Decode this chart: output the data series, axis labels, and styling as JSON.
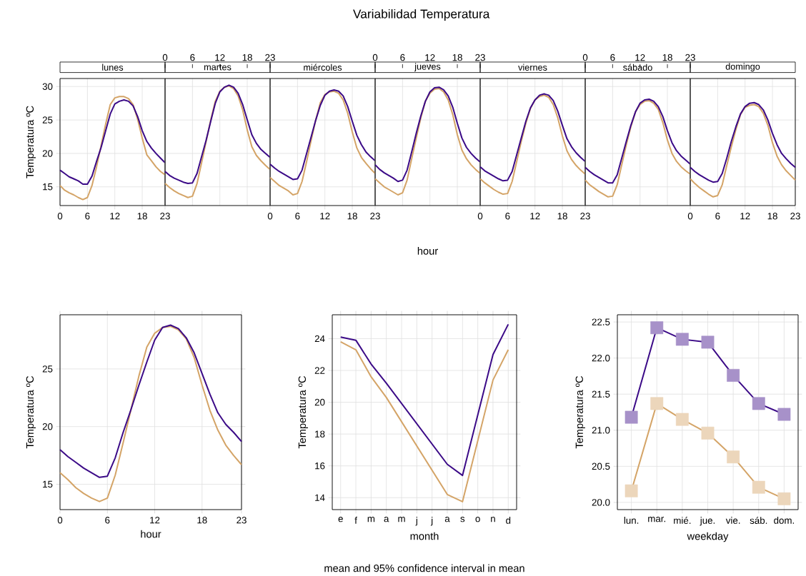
{
  "chart_data": [
    {
      "type": "line",
      "title": "lunes",
      "ylabel": "Temperatura ºC",
      "annotations": [
        "Variabilidad Temperatura"
      ],
      "x": [
        0,
        1,
        2,
        3,
        4,
        5,
        6,
        7,
        8,
        9,
        10,
        11,
        12,
        13,
        14,
        15,
        16,
        17,
        18,
        19,
        20,
        21,
        22,
        23
      ],
      "xlim": [
        0,
        23
      ],
      "xticks": [
        0,
        6,
        12,
        18,
        23
      ],
      "ylim": [
        12.2,
        31.2
      ],
      "yticks": [
        15,
        20,
        25,
        30
      ],
      "grid": true,
      "series": [
        {
          "color": "#d4a467",
          "values": [
            15.2,
            14.5,
            14.1,
            13.8,
            13.4,
            13.1,
            13.4,
            15.2,
            18.0,
            21.2,
            24.4,
            27.3,
            28.3,
            28.5,
            28.5,
            28.2,
            27.3,
            25.1,
            22.3,
            19.8,
            18.9,
            18.0,
            17.3,
            16.8
          ]
        },
        {
          "color": "#3b0a87",
          "values": [
            17.5,
            17.0,
            16.5,
            16.2,
            15.9,
            15.4,
            15.4,
            16.6,
            18.8,
            20.9,
            23.4,
            25.9,
            27.4,
            27.8,
            28.0,
            27.8,
            27.1,
            25.5,
            23.4,
            21.8,
            20.8,
            20.0,
            19.3,
            18.6
          ]
        }
      ]
    },
    {
      "type": "line",
      "title": "martes",
      "x": [
        0,
        1,
        2,
        3,
        4,
        5,
        6,
        7,
        8,
        9,
        10,
        11,
        12,
        13,
        14,
        15,
        16,
        17,
        18,
        19,
        20,
        21,
        22,
        23
      ],
      "xlim": [
        0,
        23
      ],
      "x2lim": [
        0,
        23
      ],
      "x2ticks": [
        0,
        6,
        12,
        18,
        23
      ],
      "ylim": [
        12.2,
        31.2
      ],
      "yticks": [
        15,
        20,
        25,
        30
      ],
      "grid": true,
      "tick_labels": "x",
      "series": [
        {
          "color": "#d4a467",
          "values": [
            15.5,
            14.9,
            14.4,
            14.0,
            13.7,
            13.4,
            13.6,
            15.5,
            18.6,
            21.8,
            25.0,
            27.8,
            29.3,
            29.9,
            30.1,
            29.7,
            28.6,
            26.5,
            23.5,
            21.0,
            19.7,
            18.9,
            18.2,
            17.6
          ]
        },
        {
          "color": "#3b0a87",
          "values": [
            17.3,
            16.7,
            16.3,
            16.0,
            15.7,
            15.5,
            15.6,
            17.0,
            19.5,
            22.0,
            24.8,
            27.5,
            29.2,
            29.9,
            30.2,
            29.9,
            29.0,
            27.3,
            25.0,
            22.8,
            21.5,
            20.6,
            20.0,
            19.4
          ]
        }
      ]
    },
    {
      "type": "line",
      "title": "miércoles",
      "x": [
        0,
        1,
        2,
        3,
        4,
        5,
        6,
        7,
        8,
        9,
        10,
        11,
        12,
        13,
        14,
        15,
        16,
        17,
        18,
        19,
        20,
        21,
        22,
        23
      ],
      "xlim": [
        0,
        23
      ],
      "xticks": [
        0,
        6,
        12,
        18,
        23
      ],
      "ylim": [
        12.2,
        31.2
      ],
      "yticks": [
        15,
        20,
        25,
        30
      ],
      "grid": true,
      "tick_labels": "x",
      "series": [
        {
          "color": "#d4a467",
          "values": [
            16.4,
            15.8,
            15.2,
            14.8,
            14.4,
            13.8,
            14.0,
            15.8,
            18.8,
            22.0,
            25.0,
            27.6,
            28.8,
            29.2,
            29.3,
            29.0,
            28.0,
            26.0,
            23.2,
            20.8,
            19.4,
            18.5,
            17.7,
            17.0
          ]
        },
        {
          "color": "#3b0a87",
          "values": [
            18.4,
            17.8,
            17.3,
            16.9,
            16.5,
            16.1,
            16.2,
            17.5,
            20.0,
            22.5,
            25.0,
            27.2,
            28.7,
            29.3,
            29.5,
            29.3,
            28.6,
            27.0,
            24.8,
            22.7,
            21.3,
            20.2,
            19.5,
            18.9
          ]
        }
      ]
    },
    {
      "type": "line",
      "title": "jueves",
      "xlabel": "hour",
      "x": [
        0,
        1,
        2,
        3,
        4,
        5,
        6,
        7,
        8,
        9,
        10,
        11,
        12,
        13,
        14,
        15,
        16,
        17,
        18,
        19,
        20,
        21,
        22,
        23
      ],
      "xlim": [
        0,
        23
      ],
      "x2lim": [
        0,
        23
      ],
      "x2ticks": [
        0,
        6,
        12,
        18,
        23
      ],
      "ylim": [
        12.2,
        31.2
      ],
      "yticks": [
        15,
        20,
        25,
        30
      ],
      "grid": true,
      "tick_labels": "x",
      "series": [
        {
          "color": "#d4a467",
          "values": [
            16.2,
            15.6,
            15.0,
            14.6,
            14.2,
            13.8,
            14.1,
            16.0,
            19.2,
            22.3,
            25.3,
            27.8,
            29.0,
            29.6,
            29.7,
            29.2,
            28.0,
            25.8,
            22.8,
            20.5,
            19.2,
            18.3,
            17.6,
            17.0
          ]
        },
        {
          "color": "#3b0a87",
          "values": [
            18.3,
            17.6,
            17.1,
            16.7,
            16.3,
            15.8,
            16.0,
            17.5,
            20.2,
            23.0,
            25.6,
            27.8,
            29.2,
            29.8,
            29.9,
            29.5,
            28.6,
            26.9,
            24.5,
            22.3,
            20.9,
            20.0,
            19.3,
            18.7
          ]
        }
      ]
    },
    {
      "type": "line",
      "title": "viernes",
      "x": [
        0,
        1,
        2,
        3,
        4,
        5,
        6,
        7,
        8,
        9,
        10,
        11,
        12,
        13,
        14,
        15,
        16,
        17,
        18,
        19,
        20,
        21,
        22,
        23
      ],
      "xlim": [
        0,
        23
      ],
      "xticks": [
        0,
        6,
        12,
        18,
        23
      ],
      "ylim": [
        12.2,
        31.2
      ],
      "yticks": [
        15,
        20,
        25,
        30
      ],
      "grid": true,
      "tick_labels": "x",
      "series": [
        {
          "color": "#d4a467",
          "values": [
            16.2,
            15.6,
            15.1,
            14.6,
            14.2,
            13.9,
            14.0,
            15.8,
            18.8,
            21.8,
            24.5,
            26.7,
            28.0,
            28.5,
            28.7,
            28.4,
            27.3,
            25.3,
            22.6,
            20.4,
            19.1,
            18.2,
            17.5,
            16.9
          ]
        },
        {
          "color": "#3b0a87",
          "values": [
            18.0,
            17.4,
            17.0,
            16.6,
            16.2,
            15.9,
            16.0,
            17.3,
            19.8,
            22.3,
            24.8,
            26.8,
            28.0,
            28.7,
            28.9,
            28.7,
            27.9,
            26.3,
            24.2,
            22.2,
            21.0,
            20.1,
            19.4,
            18.8
          ]
        }
      ]
    },
    {
      "type": "line",
      "title": "sábado",
      "x": [
        0,
        1,
        2,
        3,
        4,
        5,
        6,
        7,
        8,
        9,
        10,
        11,
        12,
        13,
        14,
        15,
        16,
        17,
        18,
        19,
        20,
        21,
        22,
        23
      ],
      "xlim": [
        0,
        23
      ],
      "x2lim": [
        0,
        23
      ],
      "x2ticks": [
        0,
        6,
        12,
        18,
        23
      ],
      "ylim": [
        12.2,
        31.2
      ],
      "yticks": [
        15,
        20,
        25,
        30
      ],
      "grid": true,
      "tick_labels": "x",
      "series": [
        {
          "color": "#d4a467",
          "values": [
            16.0,
            15.3,
            14.8,
            14.3,
            13.9,
            13.5,
            13.6,
            15.3,
            18.3,
            21.3,
            24.0,
            26.2,
            27.3,
            27.8,
            27.9,
            27.5,
            26.6,
            24.6,
            22.0,
            20.0,
            18.8,
            18.0,
            17.4,
            16.9
          ]
        },
        {
          "color": "#3b0a87",
          "values": [
            17.9,
            17.3,
            16.8,
            16.4,
            16.0,
            15.6,
            15.6,
            16.8,
            19.3,
            21.8,
            24.2,
            26.2,
            27.5,
            28.0,
            28.1,
            27.8,
            27.0,
            25.5,
            23.4,
            21.6,
            20.4,
            19.6,
            19.0,
            18.4
          ]
        }
      ]
    },
    {
      "type": "line",
      "title": "domingo",
      "x": [
        0,
        1,
        2,
        3,
        4,
        5,
        6,
        7,
        8,
        9,
        10,
        11,
        12,
        13,
        14,
        15,
        16,
        17,
        18,
        19,
        20,
        21,
        22,
        23
      ],
      "xlim": [
        0,
        23
      ],
      "xticks": [
        0,
        6,
        12,
        18,
        23
      ],
      "ylim": [
        12.2,
        31.2
      ],
      "yticks": [
        15,
        20,
        25,
        30
      ],
      "grid": true,
      "tick_labels": "x",
      "series": [
        {
          "color": "#d4a467",
          "values": [
            16.2,
            15.5,
            14.9,
            14.4,
            13.9,
            13.5,
            13.7,
            15.3,
            18.2,
            21.0,
            23.6,
            25.8,
            26.9,
            27.2,
            27.3,
            27.0,
            26.0,
            24.2,
            21.6,
            19.6,
            18.3,
            17.4,
            16.7,
            16.0
          ]
        },
        {
          "color": "#3b0a87",
          "values": [
            17.9,
            17.3,
            16.8,
            16.4,
            16.0,
            15.7,
            15.8,
            17.0,
            19.3,
            21.8,
            24.0,
            25.9,
            27.0,
            27.5,
            27.6,
            27.3,
            26.5,
            25.0,
            23.0,
            21.3,
            20.0,
            19.2,
            18.5,
            17.9
          ]
        }
      ]
    },
    {
      "type": "line",
      "xlabel": "hour",
      "ylabel": "Temperatura ºC",
      "x": [
        0,
        1,
        2,
        3,
        4,
        5,
        6,
        7,
        8,
        9,
        10,
        11,
        12,
        13,
        14,
        15,
        16,
        17,
        18,
        19,
        20,
        21,
        22,
        23
      ],
      "xlim": [
        0,
        23
      ],
      "xticks": [
        0,
        6,
        12,
        18,
        23
      ],
      "ylim": [
        12.8,
        29.7
      ],
      "yticks": [
        15,
        20,
        25
      ],
      "grid": true,
      "series": [
        {
          "color": "#d4a467",
          "values": [
            16.0,
            15.4,
            14.7,
            14.2,
            13.8,
            13.5,
            13.8,
            15.8,
            18.6,
            21.5,
            24.4,
            26.9,
            28.1,
            28.6,
            28.7,
            28.4,
            27.6,
            26.0,
            23.6,
            21.4,
            19.7,
            18.4,
            17.5,
            16.7
          ]
        },
        {
          "color": "#3b0a87",
          "values": [
            18.0,
            17.4,
            16.9,
            16.4,
            16.0,
            15.6,
            15.7,
            17.3,
            19.5,
            21.5,
            23.6,
            25.6,
            27.5,
            28.6,
            28.8,
            28.5,
            27.7,
            26.4,
            24.6,
            22.8,
            21.2,
            20.2,
            19.5,
            18.7
          ]
        }
      ]
    },
    {
      "type": "line",
      "xlabel": "month",
      "ylabel": "Temperatura ºC",
      "annotations": [
        "mean and 95% confidence interval in mean"
      ],
      "categories": [
        "e",
        "f",
        "m",
        "a",
        "m",
        "j",
        "j",
        "a",
        "s",
        "o",
        "n",
        "d"
      ],
      "ylim": [
        13.25,
        25.5
      ],
      "yticks": [
        14,
        16,
        18,
        20,
        22,
        24
      ],
      "grid": true,
      "series": [
        {
          "color": "#d4a467",
          "values": [
            23.8,
            23.3,
            21.6,
            20.3,
            null,
            null,
            null,
            14.2,
            13.75,
            null,
            21.4,
            23.3
          ]
        },
        {
          "color": "#3b0a87",
          "values": [
            24.1,
            23.9,
            22.4,
            21.2,
            null,
            null,
            null,
            16.1,
            15.4,
            null,
            23.0,
            24.9
          ]
        }
      ]
    },
    {
      "type": "line",
      "xlabel": "weekday",
      "ylabel": "Temperatura ºC",
      "categories": [
        "lun.",
        "mar.",
        "mié.",
        "jue.",
        "vie.",
        "sáb.",
        "dom."
      ],
      "ylim": [
        19.9,
        22.6
      ],
      "yticks": [
        {
          "value": 20,
          "label": "20.0"
        },
        {
          "value": 20.5,
          "label": "20.5"
        },
        {
          "value": 21,
          "label": "21.0"
        },
        {
          "value": 21.5,
          "label": "21.5"
        },
        {
          "value": 22,
          "label": "22.0"
        },
        {
          "value": 22.5,
          "label": "22.5"
        }
      ],
      "grid": true,
      "marker": "square",
      "series": [
        {
          "color": "#d4a467",
          "values": [
            20.16,
            21.37,
            21.15,
            20.96,
            20.63,
            20.21,
            20.05
          ]
        },
        {
          "color": "#3b0a87",
          "values": [
            21.18,
            22.42,
            22.26,
            22.22,
            21.76,
            21.37,
            21.22
          ]
        }
      ]
    }
  ]
}
